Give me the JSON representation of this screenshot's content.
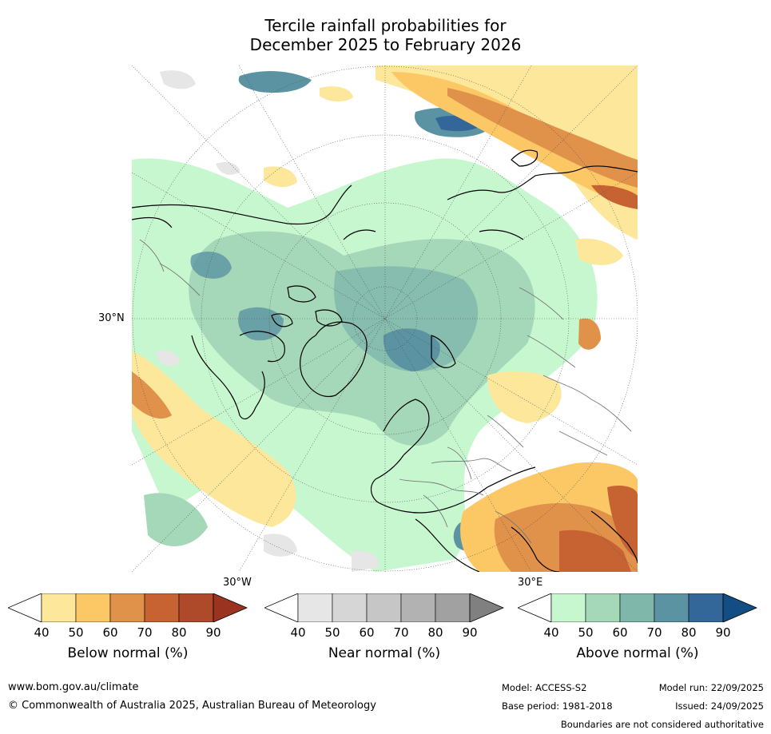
{
  "title": {
    "line1": "Tercile rainfall probabilities for",
    "line2": "December 2025 to February 2026"
  },
  "map": {
    "projection": "north-polar-stereographic",
    "labels": {
      "lat_30n": "30°N",
      "lon_30w": "30°W",
      "lon_30e": "30°E"
    }
  },
  "colorbars": [
    {
      "name": "below-normal",
      "title": "Below normal (%)",
      "ticks": [
        "40",
        "50",
        "60",
        "70",
        "80",
        "90"
      ],
      "colors": [
        "#ffffff",
        "#fde79b",
        "#fcc865",
        "#e0914a",
        "#c76332",
        "#ae4a2a",
        "#9a3320"
      ]
    },
    {
      "name": "near-normal",
      "title": "Near normal (%)",
      "ticks": [
        "40",
        "50",
        "60",
        "70",
        "80",
        "90"
      ],
      "colors": [
        "#ffffff",
        "#e6e6e6",
        "#d6d6d6",
        "#c6c6c6",
        "#b2b2b2",
        "#a1a1a1",
        "#808080"
      ]
    },
    {
      "name": "above-normal",
      "title": "Above normal (%)",
      "ticks": [
        "40",
        "50",
        "60",
        "70",
        "80",
        "90"
      ],
      "colors": [
        "#ffffff",
        "#c7f7cf",
        "#a5d8b8",
        "#7fb7ab",
        "#5b93a3",
        "#336699",
        "#124d84"
      ]
    }
  ],
  "footer": {
    "website": "www.bom.gov.au/climate",
    "copyright": "© Commonwealth of Australia 2025, Australian Bureau of Meteorology",
    "model": "Model: ACCESS-S2",
    "base_period": "Base period: 1981-2018",
    "model_run": "Model run: 22/09/2025",
    "issued": "Issued: 24/09/2025",
    "disclaimer": "Boundaries are not considered authoritative"
  }
}
